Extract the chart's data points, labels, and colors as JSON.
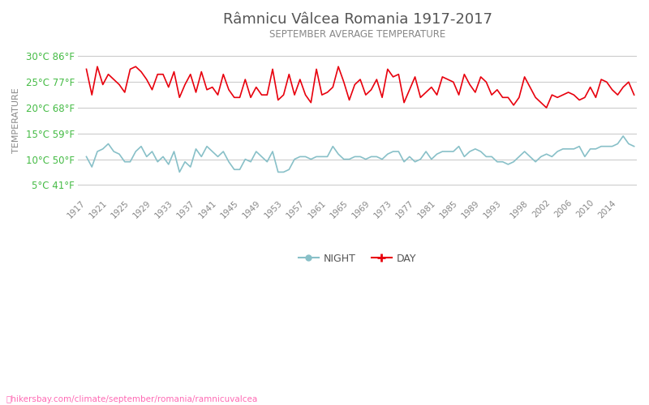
{
  "title": "Râmnicu Vâlcea Romania 1917-2017",
  "subtitle": "SEPTEMBER AVERAGE TEMPERATURE",
  "ylabel": "TEMPERATURE",
  "xlabel_years": [
    1917,
    1921,
    1925,
    1929,
    1933,
    1937,
    1941,
    1945,
    1949,
    1953,
    1957,
    1961,
    1965,
    1969,
    1973,
    1977,
    1981,
    1985,
    1989,
    1993,
    1998,
    2002,
    2006,
    2010,
    2014
  ],
  "ytick_labels": [
    "5°C 41°F",
    "10°C 50°F",
    "15°C 59°F",
    "20°C 68°F",
    "25°C 77°F",
    "30°C 86°F"
  ],
  "yticks_c": [
    5,
    10,
    15,
    20,
    25,
    30
  ],
  "ymin": 3,
  "ymax": 32,
  "day_color": "#e8000d",
  "night_color": "#88c0c8",
  "title_color": "#555555",
  "subtitle_color": "#888888",
  "ylabel_color": "#888888",
  "ytick_color": "#44bb44",
  "xtick_color": "#888888",
  "grid_color": "#cccccc",
  "background_color": "#ffffff",
  "watermark": "hikersbay.com/climate/september/romania/ramnicuvalcea",
  "watermark_color": "#ff69b4",
  "legend_night_label": "NIGHT",
  "legend_day_label": "DAY",
  "day_data": [
    27.5,
    22.5,
    28.0,
    24.5,
    26.5,
    25.5,
    24.5,
    23.0,
    27.5,
    28.0,
    27.0,
    25.5,
    23.5,
    26.5,
    26.5,
    24.0,
    27.0,
    22.0,
    24.5,
    26.5,
    23.0,
    27.0,
    23.5,
    24.0,
    22.5,
    26.5,
    23.5,
    22.0,
    22.0,
    25.5,
    22.0,
    24.0,
    22.5,
    22.5,
    27.5,
    21.5,
    22.5,
    26.5,
    22.5,
    25.5,
    22.5,
    21.0,
    27.5,
    22.5,
    23.0,
    24.0,
    28.0,
    25.0,
    21.5,
    24.5,
    25.5,
    22.5,
    23.5,
    25.5,
    22.0,
    27.5,
    26.0,
    26.5,
    21.0,
    23.5,
    26.0,
    22.0,
    23.0,
    24.0,
    22.5,
    26.0,
    25.5,
    25.0,
    22.5,
    26.5,
    24.5,
    23.0,
    26.0,
    25.0,
    22.5,
    23.5,
    22.0,
    22.0,
    20.5,
    22.0,
    26.0,
    24.0,
    22.0,
    21.0,
    20.0,
    22.5,
    22.0,
    22.5,
    23.0,
    22.5,
    21.5,
    22.0,
    24.0,
    22.0,
    25.5,
    25.0,
    23.5,
    22.5,
    24.0,
    25.0,
    22.5
  ],
  "night_data": [
    10.5,
    8.5,
    11.5,
    12.0,
    13.0,
    11.5,
    11.0,
    9.5,
    9.5,
    11.5,
    12.5,
    10.5,
    11.5,
    9.5,
    10.5,
    9.0,
    11.5,
    7.5,
    9.5,
    8.5,
    12.0,
    10.5,
    12.5,
    11.5,
    10.5,
    11.5,
    9.5,
    8.0,
    8.0,
    10.0,
    9.5,
    11.5,
    10.5,
    9.5,
    11.5,
    7.5,
    7.5,
    8.0,
    10.0,
    10.5,
    10.5,
    10.0,
    10.5,
    10.5,
    10.5,
    12.5,
    11.0,
    10.0,
    10.0,
    10.5,
    10.5,
    10.0,
    10.5,
    10.5,
    10.0,
    11.0,
    11.5,
    11.5,
    9.5,
    10.5,
    9.5,
    10.0,
    11.5,
    10.0,
    11.0,
    11.5,
    11.5,
    11.5,
    12.5,
    10.5,
    11.5,
    12.0,
    11.5,
    10.5,
    10.5,
    9.5,
    9.5,
    9.0,
    9.5,
    10.5,
    11.5,
    10.5,
    9.5,
    10.5,
    11.0,
    10.5,
    11.5,
    12.0,
    12.0,
    12.0,
    12.5,
    10.5,
    12.0,
    12.0,
    12.5,
    12.5,
    12.5,
    13.0,
    14.5,
    13.0,
    12.5
  ]
}
